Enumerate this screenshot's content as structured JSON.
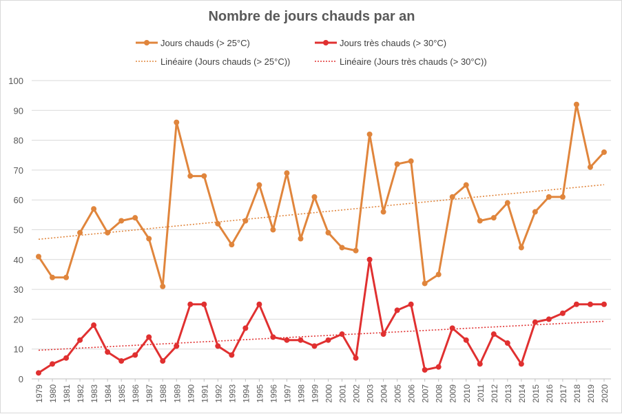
{
  "chart_data": {
    "type": "line",
    "title": "Nombre de jours chauds par an",
    "xlabel": "",
    "ylabel": "",
    "ylim": [
      0,
      100
    ],
    "yticks": [
      "0",
      "10",
      "20",
      "30",
      "40",
      "50",
      "60",
      "70",
      "80",
      "90",
      "100"
    ],
    "grid": true,
    "legend_position": "top",
    "categories": [
      "1979",
      "1980",
      "1981",
      "1982",
      "1983",
      "1984",
      "1985",
      "1986",
      "1987",
      "1988",
      "1989",
      "1990",
      "1991",
      "1992",
      "1993",
      "1994",
      "1995",
      "1996",
      "1997",
      "1998",
      "1999",
      "2000",
      "2001",
      "2002",
      "2003",
      "2004",
      "2005",
      "2006",
      "2007",
      "2008",
      "2009",
      "2010",
      "2011",
      "2012",
      "2013",
      "2014",
      "2015",
      "2016",
      "2017",
      "2018",
      "2019",
      "2020"
    ],
    "series": [
      {
        "name": "Jours chauds (> 25°C)",
        "color": "#e0853c",
        "values": [
          41,
          34,
          34,
          49,
          57,
          49,
          53,
          54,
          47,
          31,
          86,
          68,
          68,
          52,
          45,
          53,
          65,
          50,
          69,
          47,
          61,
          49,
          44,
          43,
          82,
          56,
          72,
          73,
          32,
          35,
          61,
          65,
          53,
          54,
          59,
          44,
          56,
          61,
          61,
          92,
          71,
          76
        ]
      },
      {
        "name": "Jours très chauds (> 30°C)",
        "color": "#e03030",
        "values": [
          2,
          5,
          7,
          13,
          18,
          9,
          6,
          8,
          14,
          6,
          11,
          25,
          25,
          11,
          8,
          17,
          25,
          14,
          13,
          13,
          11,
          13,
          15,
          7,
          40,
          15,
          23,
          25,
          3,
          4,
          17,
          13,
          5,
          15,
          12,
          5,
          19,
          20,
          22,
          25,
          25,
          25
        ]
      }
    ],
    "trendlines": [
      {
        "name": "Linéaire (Jours chauds (> 25°C))",
        "color": "#e0853c",
        "start": 46.8,
        "end": 65.1
      },
      {
        "name": "Linéaire (Jours très chauds (> 30°C))",
        "color": "#e03030",
        "start": 9.6,
        "end": 19.3
      }
    ]
  }
}
